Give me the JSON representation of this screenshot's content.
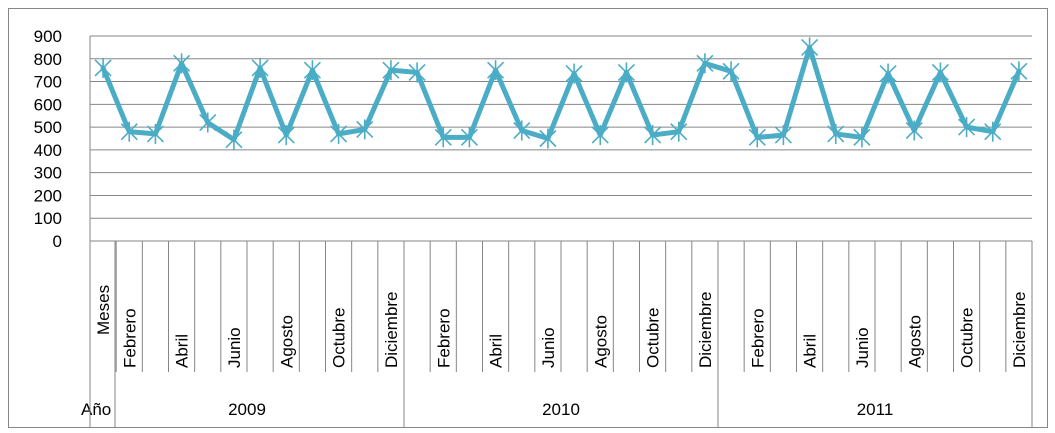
{
  "chart_data": {
    "type": "line",
    "ylim": [
      0,
      900
    ],
    "yticks": [
      "0",
      "100",
      "200",
      "300",
      "400",
      "500",
      "600",
      "700",
      "800",
      "900"
    ],
    "header_label": "Meses",
    "year_row_label": "Año",
    "categories": [
      "",
      "Febrero",
      "",
      "Abril",
      "",
      "Junio",
      "",
      "Agosto",
      "",
      "Octubre",
      "",
      "Diciembre",
      "",
      "Febrero",
      "",
      "Abril",
      "",
      "Junio",
      "",
      "Agosto",
      "",
      "Octubre",
      "",
      "Diciembre",
      "",
      "Febrero",
      "",
      "Abril",
      "",
      "Junio",
      "",
      "Agosto",
      "",
      "Octubre",
      "",
      "Diciembre"
    ],
    "years": [
      "2009",
      "2010",
      "2011"
    ],
    "values": [
      760,
      480,
      470,
      780,
      520,
      445,
      760,
      465,
      750,
      470,
      490,
      750,
      740,
      455,
      455,
      750,
      485,
      450,
      735,
      465,
      740,
      465,
      480,
      780,
      745,
      455,
      465,
      850,
      470,
      455,
      735,
      485,
      740,
      500,
      480,
      745
    ],
    "line_color": "#4BACC6",
    "grid": true
  }
}
